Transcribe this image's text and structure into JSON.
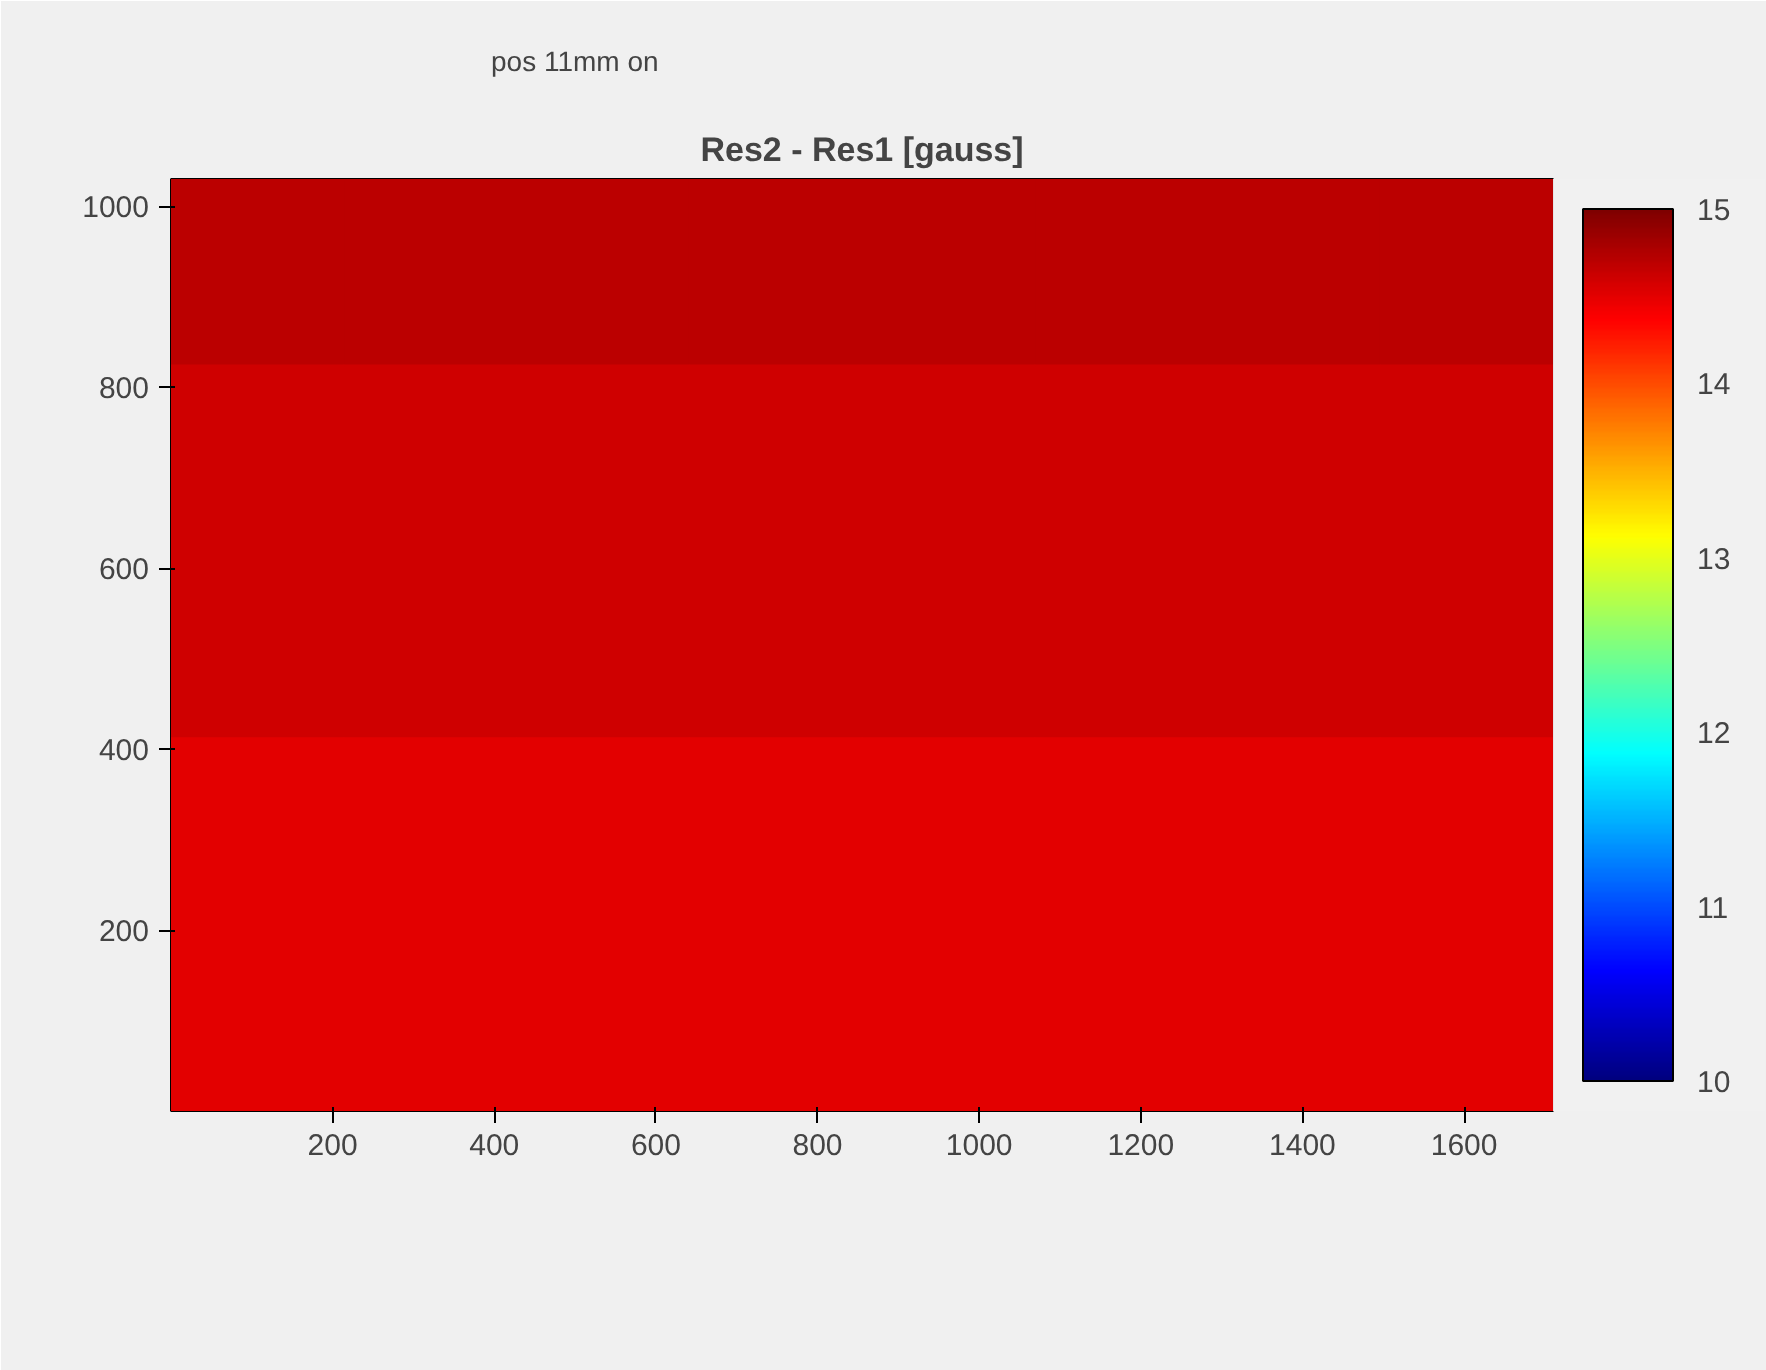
{
  "chart_data": {
    "type": "heatmap",
    "title": "Res2 - Res1 [gauss]",
    "annotations": [
      "pos 11mm on"
    ],
    "x": [
      106.875,
      320.625,
      534.375,
      748.125,
      961.875,
      1175.625,
      1389.375,
      1603.125
    ],
    "y": [
      927,
      721,
      515,
      309,
      103
    ],
    "cells": [
      [
        14.7,
        14.7,
        14.7,
        14.7,
        14.7,
        14.7,
        14.7,
        14.7
      ],
      [
        14.6,
        14.6,
        14.6,
        14.6,
        14.6,
        14.6,
        14.6,
        14.6
      ],
      [
        14.6,
        14.6,
        14.6,
        14.6,
        14.6,
        14.6,
        14.6,
        14.6
      ],
      [
        14.5,
        14.5,
        14.5,
        14.5,
        14.5,
        14.5,
        14.5,
        14.5
      ],
      [
        14.5,
        14.5,
        14.5,
        14.5,
        14.5,
        14.5,
        14.5,
        14.5
      ]
    ],
    "xlim": [
      0,
      1710
    ],
    "xticks": [
      200,
      400,
      600,
      800,
      1000,
      1200,
      1400,
      1600
    ],
    "ylim": [
      0,
      1030
    ],
    "yticks": [
      200,
      400,
      600,
      800,
      1000
    ],
    "clim": [
      10,
      15
    ],
    "cticks": [
      10,
      11,
      12,
      13,
      14,
      15
    ]
  }
}
